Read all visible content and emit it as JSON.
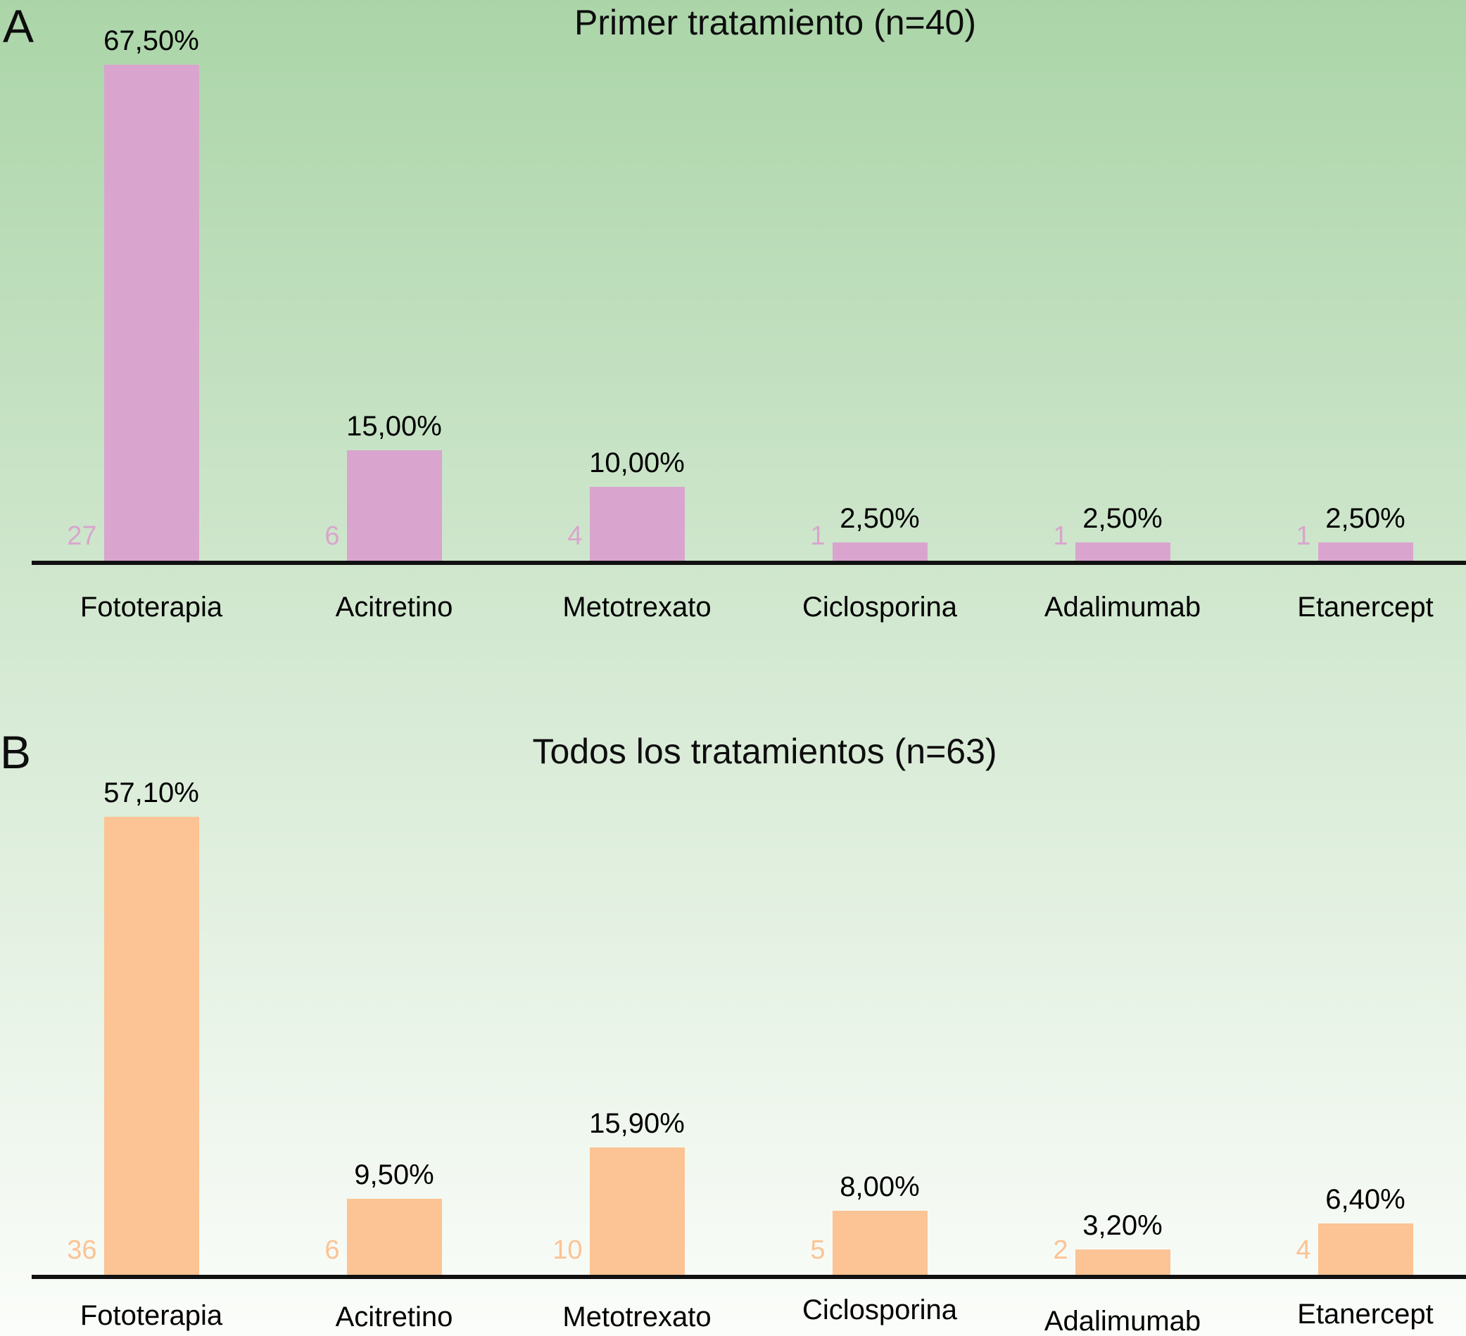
{
  "figure": {
    "background_top_color": "#abd5a8",
    "background_bottom_color": "#fbfdfa",
    "axis_color": "#111111",
    "text_color": "#000000"
  },
  "chart_data": [
    {
      "type": "bar",
      "panel_letter": "A",
      "title": "Primer tratamiento (n=40)",
      "n_total": 40,
      "categories": [
        "Fototerapia",
        "Acitretino",
        "Metotrexato",
        "Ciclosporina",
        "Adalimumab",
        "Etanercept"
      ],
      "values": [
        67.5,
        15.0,
        10.0,
        2.5,
        2.5,
        2.5
      ],
      "value_labels": [
        "67,50%",
        "15,00%",
        "10,00%",
        "2,50%",
        "2,50%",
        "2,50%"
      ],
      "counts": [
        27,
        6,
        4,
        1,
        1,
        1
      ],
      "bar_color": "#d9a5ce",
      "count_label_color": "#d9a5ce",
      "xlabel": "",
      "ylabel": "",
      "ylim": [
        0,
        70
      ],
      "grid": false,
      "legend": false
    },
    {
      "type": "bar",
      "panel_letter": "B",
      "title": "Todos los tratamientos (n=63)",
      "n_total": 63,
      "categories": [
        "Fototerapia",
        "Acitretino",
        "Metotrexato",
        "Ciclosporina",
        "Adalimumab",
        "Etanercept"
      ],
      "values": [
        57.1,
        9.5,
        15.9,
        8.0,
        3.2,
        6.4
      ],
      "value_labels": [
        "57,10%",
        "9,50%",
        "15,90%",
        "8,00%",
        "3,20%",
        "6,40%"
      ],
      "counts": [
        36,
        6,
        10,
        5,
        2,
        4
      ],
      "bar_color": "#fcc394",
      "count_label_color": "#fcc394",
      "xlabel": "",
      "ylabel": "",
      "ylim": [
        0,
        60
      ],
      "grid": false,
      "legend": false
    }
  ]
}
